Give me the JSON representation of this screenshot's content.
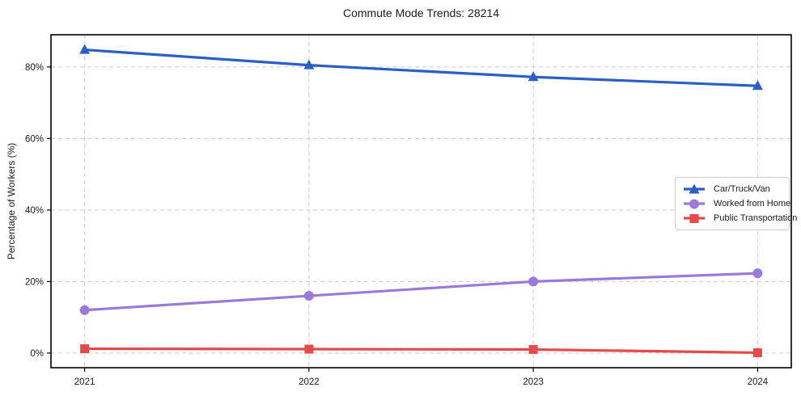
{
  "chart_data": {
    "type": "line",
    "title": "Commute Mode Trends: 28214",
    "xlabel": "",
    "ylabel": "Percentage of Workers (%)",
    "x": [
      2021,
      2022,
      2023,
      2024
    ],
    "xtick_labels": [
      "2021",
      "2022",
      "2023",
      "2024"
    ],
    "ytick_values": [
      0,
      20,
      40,
      60,
      80
    ],
    "ytick_labels": [
      "0%",
      "20%",
      "40%",
      "60%",
      "80%"
    ],
    "xlim": [
      2020.85,
      2024.15
    ],
    "ylim": [
      -4.1,
      89.0
    ],
    "grid": true,
    "grid_style": "dashed",
    "legend_position": "center-right",
    "colors": {
      "grid": "#cccccc",
      "spine": "#000000",
      "text": "#1a1a1a"
    },
    "series": [
      {
        "name": "Car/Truck/Van",
        "color": "#2a5fc4",
        "marker": "triangle",
        "values": [
          84.8,
          80.5,
          77.2,
          74.7
        ]
      },
      {
        "name": "Worked from Home",
        "color": "#9a7ad8",
        "marker": "circle",
        "values": [
          12.0,
          16.0,
          20.0,
          22.3
        ]
      },
      {
        "name": "Public Transportation",
        "color": "#e54949",
        "marker": "square",
        "values": [
          1.2,
          1.1,
          1.0,
          0.1
        ]
      }
    ]
  }
}
